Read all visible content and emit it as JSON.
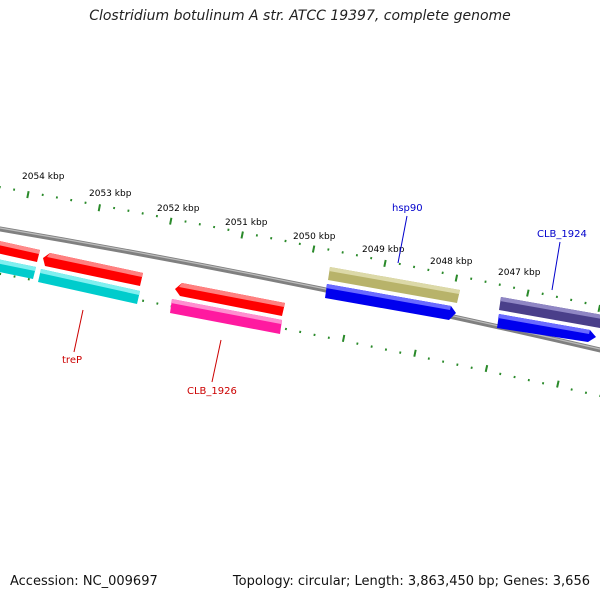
{
  "title": "Clostridium botulinum A str. ATCC 19397, complete genome",
  "footer": {
    "accession": "Accession: NC_009697",
    "summary": "Topology: circular; Length: 3,863,450 bp; Genes: 3,656"
  },
  "colors": {
    "backbone": "#808080",
    "ticks": "#2a8a2a",
    "red": "#ff0000",
    "cyan": "#00cccc",
    "magenta": "#ff1aa0",
    "olive": "#b8b36a",
    "blue": "#0000ee",
    "purple": "#4a3f8a",
    "label_red": "#cc0000",
    "label_blue": "#0000cc"
  },
  "kbp_labels": [
    "2054 kbp",
    "2053 kbp",
    "2052 kbp",
    "2051 kbp",
    "2050 kbp",
    "2049 kbp",
    "2048 kbp",
    "2047 kbp"
  ],
  "gene_labels": {
    "hsp90": "hsp90",
    "clb1924": "CLB_1924",
    "trep": "treP",
    "clb1926": "CLB_1926"
  }
}
